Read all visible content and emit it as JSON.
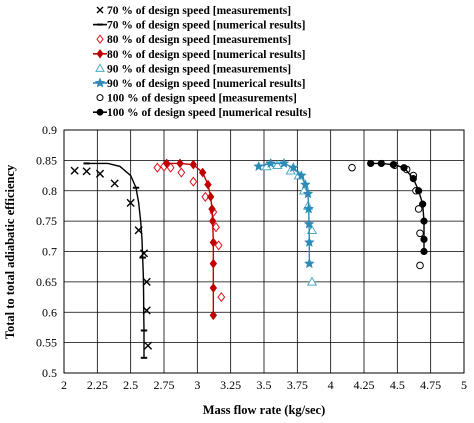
{
  "chart_data": {
    "type": "scatter",
    "xlabel": "Mass flow rate (kg/sec)",
    "ylabel": "Total to total adiabatic efficiency",
    "xlim": [
      2,
      5
    ],
    "ylim": [
      0.5,
      0.9
    ],
    "xticks": [
      "2",
      "2.25",
      "2.5",
      "2.75",
      "3",
      "3.25",
      "3.5",
      "3.75",
      "4",
      "4.25",
      "4.5",
      "4.75",
      "5"
    ],
    "yticks": [
      "0.5",
      "0.55",
      "0.6",
      "0.65",
      "0.7",
      "0.75",
      "0.8",
      "0.85",
      "0.9"
    ],
    "grid": true,
    "legend_position": "top",
    "series": [
      {
        "name": "70 % of design speed [measurements]",
        "color": "#000000",
        "marker": "x",
        "line": false,
        "points": [
          [
            2.08,
            0.833
          ],
          [
            2.17,
            0.832
          ],
          [
            2.27,
            0.828
          ],
          [
            2.38,
            0.812
          ],
          [
            2.5,
            0.78
          ],
          [
            2.56,
            0.735
          ],
          [
            2.6,
            0.697
          ],
          [
            2.62,
            0.65
          ],
          [
            2.62,
            0.603
          ],
          [
            2.63,
            0.545
          ]
        ]
      },
      {
        "name": "70 % of design speed [numerical results]",
        "color": "#000000",
        "marker": "dash",
        "line": true,
        "points": [
          [
            2.17,
            0.845
          ],
          [
            2.33,
            0.845
          ],
          [
            2.42,
            0.84
          ],
          [
            2.5,
            0.825
          ],
          [
            2.54,
            0.805
          ],
          [
            2.56,
            0.78
          ],
          [
            2.575,
            0.75
          ],
          [
            2.585,
            0.72
          ],
          [
            2.59,
            0.69
          ],
          [
            2.595,
            0.66
          ],
          [
            2.597,
            0.63
          ],
          [
            2.598,
            0.6
          ],
          [
            2.6,
            0.57
          ],
          [
            2.6,
            0.525
          ]
        ]
      },
      {
        "name": "80 % of design speed [measurements]",
        "color": "#e0141c",
        "marker": "diamond-open",
        "line": false,
        "points": [
          [
            2.7,
            0.838
          ],
          [
            2.75,
            0.84
          ],
          [
            2.8,
            0.838
          ],
          [
            2.88,
            0.83
          ],
          [
            2.97,
            0.815
          ],
          [
            3.06,
            0.79
          ],
          [
            3.12,
            0.765
          ],
          [
            3.14,
            0.74
          ],
          [
            3.16,
            0.71
          ],
          [
            3.18,
            0.625
          ]
        ]
      },
      {
        "name": "80 % of design speed [numerical results]",
        "color": "#c00000",
        "marker": "diamond",
        "line": true,
        "points": [
          [
            2.77,
            0.845
          ],
          [
            2.87,
            0.845
          ],
          [
            2.97,
            0.843
          ],
          [
            3.04,
            0.83
          ],
          [
            3.08,
            0.81
          ],
          [
            3.1,
            0.79
          ],
          [
            3.11,
            0.77
          ],
          [
            3.115,
            0.75
          ],
          [
            3.12,
            0.715
          ],
          [
            3.12,
            0.68
          ],
          [
            3.12,
            0.64
          ],
          [
            3.12,
            0.595
          ]
        ]
      },
      {
        "name": "90 % of design speed [measurements]",
        "color": "#4bacc6",
        "marker": "triangle-open",
        "line": false,
        "points": [
          [
            3.52,
            0.84
          ],
          [
            3.6,
            0.842
          ],
          [
            3.7,
            0.833
          ],
          [
            3.76,
            0.825
          ],
          [
            3.8,
            0.8
          ],
          [
            3.83,
            0.775
          ],
          [
            3.86,
            0.735
          ],
          [
            3.86,
            0.65
          ]
        ]
      },
      {
        "name": "90 % of design speed [numerical results]",
        "color": "#2e8bb8",
        "marker": "star",
        "line": true,
        "points": [
          [
            3.46,
            0.84
          ],
          [
            3.55,
            0.845
          ],
          [
            3.65,
            0.845
          ],
          [
            3.72,
            0.838
          ],
          [
            3.78,
            0.825
          ],
          [
            3.81,
            0.81
          ],
          [
            3.83,
            0.795
          ],
          [
            3.835,
            0.77
          ],
          [
            3.838,
            0.745
          ],
          [
            3.84,
            0.715
          ],
          [
            3.84,
            0.68
          ]
        ]
      },
      {
        "name": "100 % of design speed [measurements]",
        "color": "#000000",
        "marker": "circle-open",
        "line": false,
        "points": [
          [
            4.16,
            0.838
          ],
          [
            4.48,
            0.842
          ],
          [
            4.57,
            0.835
          ],
          [
            4.62,
            0.825
          ],
          [
            4.64,
            0.8
          ],
          [
            4.66,
            0.77
          ],
          [
            4.67,
            0.73
          ],
          [
            4.67,
            0.677
          ]
        ]
      },
      {
        "name": "100 % of design speed [numerical results]",
        "color": "#000000",
        "marker": "circle",
        "line": true,
        "points": [
          [
            4.3,
            0.845
          ],
          [
            4.38,
            0.845
          ],
          [
            4.47,
            0.843
          ],
          [
            4.55,
            0.838
          ],
          [
            4.62,
            0.82
          ],
          [
            4.66,
            0.8
          ],
          [
            4.69,
            0.778
          ],
          [
            4.7,
            0.75
          ],
          [
            4.7,
            0.72
          ],
          [
            4.7,
            0.7
          ]
        ]
      }
    ]
  }
}
